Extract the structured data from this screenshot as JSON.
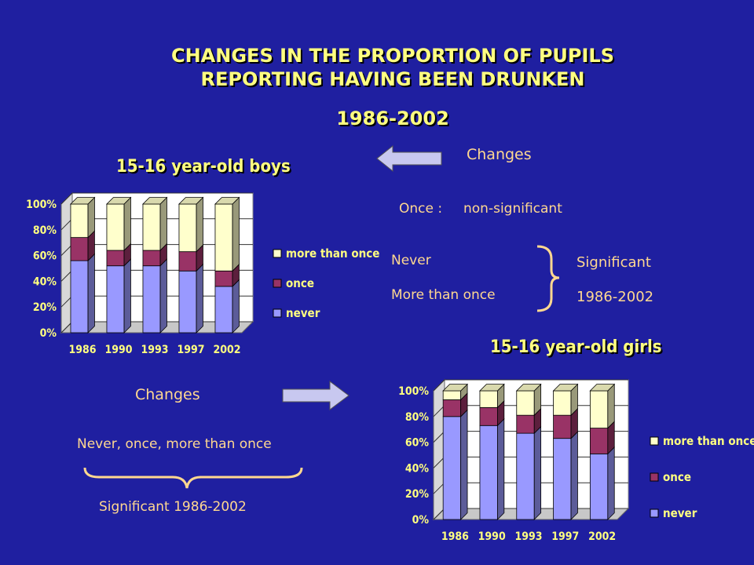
{
  "page": {
    "title_line1": "CHANGES IN THE PROPORTION OF PUPILS",
    "title_line2": "REPORTING HAVING BEEN DRUNKEN",
    "years_range": "1986-2002"
  },
  "notes": {
    "changes_right": "Changes",
    "once_label": "Once :",
    "once_result": "non-significant",
    "never": "Never",
    "more_than_once": "More than once",
    "significant": "Significant",
    "significant_years": "1986-2002",
    "changes_left": "Changes",
    "never_once_more": "Never, once, more than once",
    "significant_left": "Significant 1986-2002"
  },
  "colors": {
    "background": "#1f1fa0",
    "never": "#9999ff",
    "once": "#993366",
    "more_than_once": "#ffffcc",
    "title": "#ffff80",
    "note_text": "#ffd890"
  },
  "chart_data": [
    {
      "type": "bar",
      "stacked": true,
      "title": "15-16 year-old boys",
      "categories": [
        "1986",
        "1990",
        "1993",
        "1997",
        "2002"
      ],
      "yticks": [
        "100%",
        "80%",
        "60%",
        "40%",
        "20%",
        "0%"
      ],
      "ylim": [
        0,
        100
      ],
      "legend_position": "right",
      "series": [
        {
          "name": "never",
          "values": [
            56,
            52,
            52,
            48,
            36
          ]
        },
        {
          "name": "once",
          "values": [
            18,
            12,
            12,
            15,
            12
          ]
        },
        {
          "name": "more than once",
          "values": [
            26,
            36,
            36,
            37,
            52
          ]
        }
      ]
    },
    {
      "type": "bar",
      "stacked": true,
      "title": "15-16 year-old girls",
      "categories": [
        "1986",
        "1990",
        "1993",
        "1997",
        "2002"
      ],
      "yticks": [
        "100%",
        "80%",
        "60%",
        "40%",
        "20%",
        "0%"
      ],
      "ylim": [
        0,
        100
      ],
      "legend_position": "right",
      "series": [
        {
          "name": "never",
          "values": [
            80,
            73,
            67,
            63,
            51
          ]
        },
        {
          "name": "once",
          "values": [
            13,
            14,
            14,
            18,
            20
          ]
        },
        {
          "name": "more than once",
          "values": [
            7,
            13,
            19,
            19,
            29
          ]
        }
      ]
    }
  ]
}
